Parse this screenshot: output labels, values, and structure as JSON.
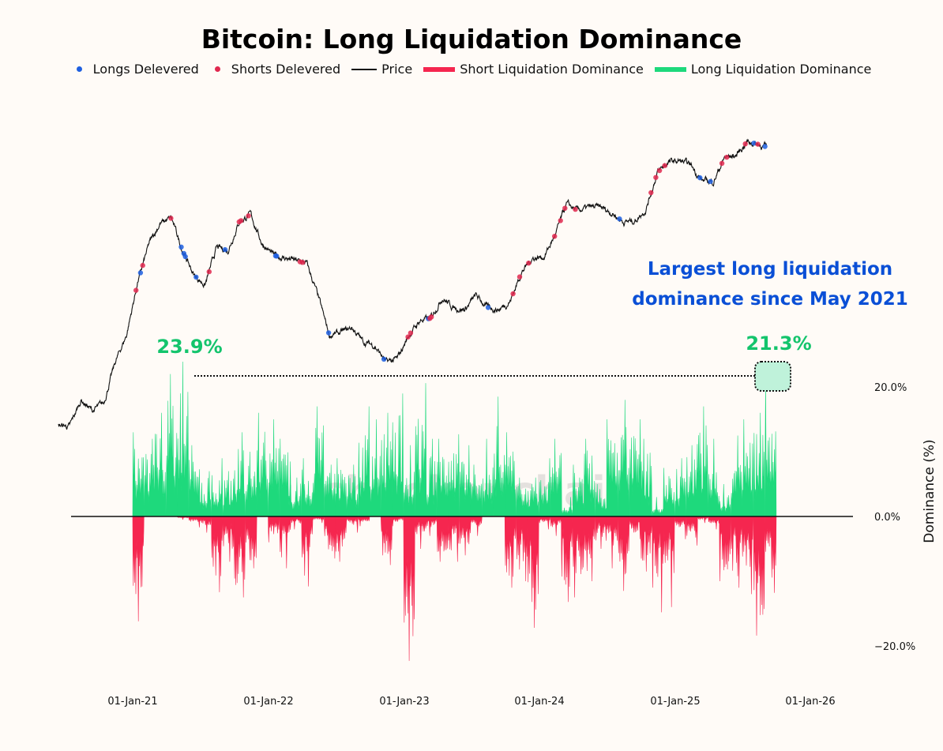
{
  "chart_data": {
    "type": "line+area",
    "title": "Bitcoin: Long Liquidation Dominance",
    "legend": {
      "placement": "top",
      "items": [
        {
          "label": "Longs Delevered",
          "color": "#1f5fe0",
          "marker": "dot"
        },
        {
          "label": "Shorts Delevered",
          "color": "#e0284f",
          "marker": "dot"
        },
        {
          "label": "Price",
          "color": "#111111",
          "marker": "line"
        },
        {
          "label": "Short Liquidation Dominance",
          "color": "#f5264f",
          "marker": "bar"
        },
        {
          "label": "Long Liquidation Dominance",
          "color": "#1ed97c",
          "marker": "bar"
        }
      ]
    },
    "ylabel": "Dominance (%)",
    "y_ticks": [
      "20.0%",
      "0.0%",
      "−20.0%"
    ],
    "y_tick_values": [
      20,
      0,
      -20
    ],
    "x_ticks": [
      "01-Jan-21",
      "01-Jan-22",
      "01-Jan-23",
      "01-Jan-24",
      "01-Jan-25",
      "01-Jan-26"
    ],
    "x_tick_dates": [
      "2021-01-01",
      "2022-01-01",
      "2023-01-01",
      "2024-01-01",
      "2025-01-01",
      "2026-01-01"
    ],
    "price_scale": "log",
    "grid": false,
    "watermark": "checkonchain",
    "price_series": {
      "name": "Price",
      "dates": [
        "2020-06-15",
        "2020-07-15",
        "2020-08-15",
        "2020-09-15",
        "2020-10-15",
        "2020-11-15",
        "2020-12-15",
        "2021-01-15",
        "2021-02-15",
        "2021-03-15",
        "2021-04-15",
        "2021-05-15",
        "2021-06-15",
        "2021-07-15",
        "2021-08-15",
        "2021-09-15",
        "2021-10-15",
        "2021-11-15",
        "2021-12-15",
        "2022-01-15",
        "2022-02-15",
        "2022-03-15",
        "2022-04-15",
        "2022-05-15",
        "2022-06-15",
        "2022-07-15",
        "2022-08-15",
        "2022-09-15",
        "2022-10-15",
        "2022-11-15",
        "2022-12-15",
        "2023-01-15",
        "2023-02-15",
        "2023-03-15",
        "2023-04-15",
        "2023-05-15",
        "2023-06-15",
        "2023-07-15",
        "2023-08-15",
        "2023-09-15",
        "2023-10-15",
        "2023-11-15",
        "2023-12-15",
        "2024-01-15",
        "2024-02-15",
        "2024-03-15",
        "2024-04-15",
        "2024-05-15",
        "2024-06-15",
        "2024-07-15",
        "2024-08-15",
        "2024-09-15",
        "2024-10-15",
        "2024-11-15",
        "2024-12-15",
        "2025-01-15",
        "2025-02-15",
        "2025-03-15",
        "2025-04-15",
        "2025-05-15",
        "2025-06-15",
        "2025-07-15",
        "2025-08-15",
        "2025-09-15"
      ],
      "values": [
        9400,
        9300,
        11800,
        10700,
        11500,
        16500,
        21000,
        34000,
        48000,
        57000,
        60000,
        45000,
        36000,
        33000,
        46000,
        45000,
        58000,
        62000,
        48000,
        43000,
        42000,
        41000,
        40000,
        30000,
        21000,
        21500,
        22500,
        19800,
        19200,
        16500,
        17000,
        21000,
        24000,
        24500,
        29500,
        27000,
        26500,
        30000,
        27000,
        26500,
        28500,
        37000,
        42000,
        42500,
        52000,
        68000,
        64000,
        66000,
        66000,
        63000,
        58000,
        58500,
        65000,
        90000,
        99000,
        100000,
        96000,
        84000,
        83000,
        103000,
        105000,
        119000,
        116000,
        112000
      ]
    },
    "dominance_series": {
      "months": [
        "2021-01",
        "2021-02",
        "2021-03",
        "2021-04",
        "2021-05",
        "2021-06",
        "2021-07",
        "2021-08",
        "2021-09",
        "2021-10",
        "2021-11",
        "2021-12",
        "2022-01",
        "2022-02",
        "2022-03",
        "2022-04",
        "2022-05",
        "2022-06",
        "2022-07",
        "2022-08",
        "2022-09",
        "2022-10",
        "2022-11",
        "2022-12",
        "2023-01",
        "2023-02",
        "2023-03",
        "2023-04",
        "2023-05",
        "2023-06",
        "2023-07",
        "2023-08",
        "2023-09",
        "2023-10",
        "2023-11",
        "2023-12",
        "2024-01",
        "2024-02",
        "2024-03",
        "2024-04",
        "2024-05",
        "2024-06",
        "2024-07",
        "2024-08",
        "2024-09",
        "2024-10",
        "2024-11",
        "2024-12",
        "2025-01",
        "2025-02",
        "2025-03",
        "2025-04",
        "2025-05",
        "2025-06",
        "2025-07",
        "2025-08",
        "2025-09"
      ],
      "long_liquidation_dominance_peak": [
        13,
        12,
        16,
        22,
        23.9,
        11,
        7,
        9,
        7,
        13,
        10,
        16,
        15,
        12,
        6,
        9,
        17,
        8,
        9,
        8,
        17,
        15,
        16,
        19,
        11,
        20.6,
        12,
        12,
        12.7,
        11,
        8,
        12,
        18.5,
        13,
        6,
        6,
        9,
        12,
        3,
        8,
        12,
        5,
        15,
        18,
        15,
        12,
        3,
        7.5,
        9,
        11,
        17,
        12,
        5,
        12.5,
        15,
        16,
        21.3
      ],
      "short_liquidation_dominance_peak": [
        -16.2,
        0,
        0,
        0,
        -0.5,
        -1.7,
        -2.5,
        -11.7,
        -7,
        -12.5,
        -8,
        0,
        -4,
        -8,
        -2,
        -10.8,
        -1,
        -6.5,
        -7,
        -2.5,
        -1.5,
        0,
        -7.5,
        -1.5,
        -22.3,
        -5,
        -3,
        -7,
        -7,
        -6,
        -3,
        0,
        0,
        -11,
        -10,
        -17.2,
        -2,
        -3,
        -13.2,
        -12.5,
        -10,
        -5,
        -8,
        -11.5,
        -3.5,
        -8.5,
        -14.8,
        -14,
        -3.5,
        -4.5,
        -1,
        -2,
        -10,
        -11,
        -12,
        -18.4,
        -11.8
      ]
    },
    "longs_delevered_dates": [
      "2021-01-22",
      "2021-05-12",
      "2021-05-19",
      "2021-05-23",
      "2021-06-21",
      "2021-09-07",
      "2022-01-21",
      "2022-01-24",
      "2022-06-13",
      "2022-11-09",
      "2023-03-09",
      "2023-08-17",
      "2024-08-05",
      "2025-03-10",
      "2025-04-07",
      "2025-08-02",
      "2025-09-01"
    ],
    "shorts_delevered_dates": [
      "2021-01-10",
      "2021-01-28",
      "2021-04-14",
      "2021-07-26",
      "2021-10-15",
      "2021-10-20",
      "2021-11-09",
      "2022-03-28",
      "2022-04-04",
      "2023-01-13",
      "2023-01-20",
      "2023-03-13",
      "2023-03-17",
      "2023-10-23",
      "2023-11-10",
      "2023-12-04",
      "2024-02-12",
      "2024-02-28",
      "2024-03-11",
      "2024-04-08",
      "2024-10-29",
      "2024-11-11",
      "2024-11-21",
      "2024-12-05",
      "2025-05-08",
      "2025-05-21",
      "2025-07-10",
      "2025-08-13"
    ],
    "annotations": {
      "peak_2021_label": "23.9%",
      "peak_2021_value": 23.9,
      "latest_label": "21.3%",
      "latest_value": 21.3,
      "note_line1": "Largest long liquidation",
      "note_line2": "dominance since May 2021"
    },
    "colors": {
      "long_area": "#1ed97c",
      "short_area": "#f5264f",
      "price": "#111111",
      "longs_dot": "#1f5fe0",
      "shorts_dot": "#e0284f",
      "annotation_green": "#13c46c",
      "annotation_blue": "#0a4fd6",
      "highlight_fill": "#bff2da",
      "background": "#fffbf7"
    }
  }
}
